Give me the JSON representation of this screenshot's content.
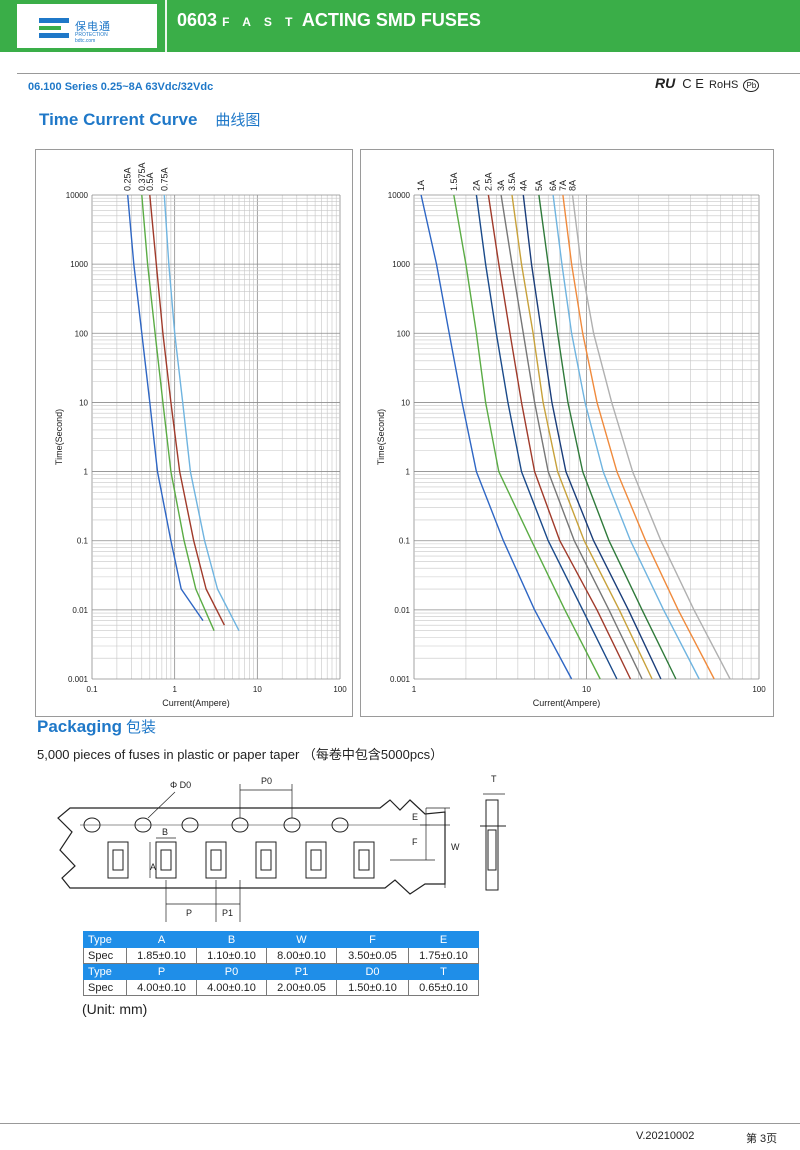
{
  "header": {
    "logo_cn": "保电通",
    "logo_en1": "PROTECTION",
    "logo_en2": "bdtc.com",
    "title_a": "0603",
    "title_b": "F A S T",
    "title_c": "ACTING SMD FUSES"
  },
  "series": "06.100 Series 0.25~8A 63Vdc/32Vdc",
  "certs": {
    "ul": "RU",
    "ce": "C E",
    "rohs": "RoHS",
    "pb": "Pb"
  },
  "curve_section": {
    "title": "Time Current Curve",
    "title_cn": "曲线图"
  },
  "chart_data": [
    {
      "type": "line",
      "xlabel": "Current(Ampere)",
      "ylabel": "Time(Second)",
      "xscale": "log",
      "yscale": "log",
      "xlim": [
        0.1,
        100
      ],
      "ylim": [
        0.001,
        10000
      ],
      "xticks": [
        "0.1",
        "1",
        "10",
        "100"
      ],
      "yticks": [
        "0.001",
        "0.01",
        "0.1",
        "1",
        "10",
        "100",
        "1000",
        "10000"
      ],
      "grid": true,
      "series": [
        {
          "name": "0.25A",
          "color": "#2e66c4",
          "points": [
            [
              0.27,
              10000
            ],
            [
              0.32,
              1000
            ],
            [
              0.4,
              100
            ],
            [
              0.5,
              10
            ],
            [
              0.62,
              1
            ],
            [
              0.9,
              0.1
            ],
            [
              1.2,
              0.02
            ],
            [
              2.2,
              0.007
            ]
          ]
        },
        {
          "name": "0.375A",
          "color": "#5aac44",
          "points": [
            [
              0.4,
              10000
            ],
            [
              0.47,
              1000
            ],
            [
              0.58,
              100
            ],
            [
              0.72,
              10
            ],
            [
              0.9,
              1
            ],
            [
              1.3,
              0.1
            ],
            [
              1.8,
              0.02
            ],
            [
              3.0,
              0.005
            ]
          ]
        },
        {
          "name": "0.5A",
          "color": "#a03a2a",
          "points": [
            [
              0.5,
              10000
            ],
            [
              0.6,
              1000
            ],
            [
              0.72,
              100
            ],
            [
              0.9,
              10
            ],
            [
              1.15,
              1
            ],
            [
              1.7,
              0.1
            ],
            [
              2.4,
              0.02
            ],
            [
              4.0,
              0.006
            ]
          ]
        },
        {
          "name": "0.75A",
          "color": "#6fb4e0",
          "points": [
            [
              0.75,
              10000
            ],
            [
              0.85,
              1000
            ],
            [
              1.0,
              100
            ],
            [
              1.25,
              10
            ],
            [
              1.55,
              1
            ],
            [
              2.3,
              0.1
            ],
            [
              3.3,
              0.02
            ],
            [
              6.0,
              0.005
            ]
          ]
        }
      ]
    },
    {
      "type": "line",
      "xlabel": "Current(Ampere)",
      "ylabel": "Time(Second)",
      "xscale": "log",
      "yscale": "log",
      "xlim": [
        1,
        100
      ],
      "ylim": [
        0.001,
        10000
      ],
      "xticks": [
        "1",
        "10",
        "100"
      ],
      "yticks": [
        "0.001",
        "0.01",
        "0.1",
        "1",
        "10",
        "100",
        "1000",
        "10000"
      ],
      "grid": true,
      "series": [
        {
          "name": "1A",
          "color": "#2e66c4",
          "points": [
            [
              1.1,
              10000
            ],
            [
              1.35,
              1000
            ],
            [
              1.6,
              100
            ],
            [
              1.9,
              10
            ],
            [
              2.3,
              1
            ],
            [
              3.3,
              0.1
            ],
            [
              5.0,
              0.01
            ],
            [
              8.2,
              0.001
            ]
          ]
        },
        {
          "name": "1.5A",
          "color": "#5aac44",
          "points": [
            [
              1.7,
              10000
            ],
            [
              2.0,
              1000
            ],
            [
              2.3,
              100
            ],
            [
              2.6,
              10
            ],
            [
              3.1,
              1
            ],
            [
              4.8,
              0.1
            ],
            [
              7.5,
              0.01
            ],
            [
              12.0,
              0.001
            ]
          ]
        },
        {
          "name": "2A",
          "color": "#1a4a8a",
          "points": [
            [
              2.3,
              10000
            ],
            [
              2.6,
              1000
            ],
            [
              3.0,
              100
            ],
            [
              3.5,
              10
            ],
            [
              4.2,
              1
            ],
            [
              6.0,
              0.1
            ],
            [
              9.5,
              0.01
            ],
            [
              15.0,
              0.001
            ]
          ]
        },
        {
          "name": "2.5A",
          "color": "#a03a2a",
          "points": [
            [
              2.7,
              10000
            ],
            [
              3.1,
              1000
            ],
            [
              3.6,
              100
            ],
            [
              4.2,
              10
            ],
            [
              5.0,
              1
            ],
            [
              7.0,
              0.1
            ],
            [
              11.5,
              0.01
            ],
            [
              18.0,
              0.001
            ]
          ]
        },
        {
          "name": "3A",
          "color": "#777777",
          "points": [
            [
              3.2,
              10000
            ],
            [
              3.7,
              1000
            ],
            [
              4.3,
              100
            ],
            [
              5.0,
              10
            ],
            [
              6.0,
              1
            ],
            [
              8.5,
              0.1
            ],
            [
              13.5,
              0.01
            ],
            [
              21.0,
              0.001
            ]
          ]
        },
        {
          "name": "3.5A",
          "color": "#c7a13a",
          "points": [
            [
              3.7,
              10000
            ],
            [
              4.2,
              1000
            ],
            [
              4.9,
              100
            ],
            [
              5.6,
              10
            ],
            [
              6.8,
              1
            ],
            [
              9.7,
              0.1
            ],
            [
              15.5,
              0.01
            ],
            [
              24.0,
              0.001
            ]
          ]
        },
        {
          "name": "4A",
          "color": "#1a3d7a",
          "points": [
            [
              4.3,
              10000
            ],
            [
              4.8,
              1000
            ],
            [
              5.5,
              100
            ],
            [
              6.3,
              10
            ],
            [
              7.6,
              1
            ],
            [
              11.0,
              0.1
            ],
            [
              17.5,
              0.01
            ],
            [
              27.0,
              0.001
            ]
          ]
        },
        {
          "name": "5A",
          "color": "#2f7a3a",
          "points": [
            [
              5.3,
              10000
            ],
            [
              6.0,
              1000
            ],
            [
              6.8,
              100
            ],
            [
              7.8,
              10
            ],
            [
              9.5,
              1
            ],
            [
              13.5,
              0.1
            ],
            [
              21.0,
              0.01
            ],
            [
              33.0,
              0.001
            ]
          ]
        },
        {
          "name": "6A",
          "color": "#6fb4e0",
          "points": [
            [
              6.4,
              10000
            ],
            [
              7.2,
              1000
            ],
            [
              8.2,
              100
            ],
            [
              9.8,
              10
            ],
            [
              12.5,
              1
            ],
            [
              18.0,
              0.1
            ],
            [
              28.0,
              0.01
            ],
            [
              45.0,
              0.001
            ]
          ]
        },
        {
          "name": "7A",
          "color": "#f08a3c",
          "points": [
            [
              7.3,
              10000
            ],
            [
              8.2,
              1000
            ],
            [
              9.5,
              100
            ],
            [
              11.5,
              10
            ],
            [
              15.0,
              1
            ],
            [
              22.0,
              0.1
            ],
            [
              34.0,
              0.01
            ],
            [
              55.0,
              0.001
            ]
          ]
        },
        {
          "name": "8A",
          "color": "#b0b0b0",
          "points": [
            [
              8.3,
              10000
            ],
            [
              9.3,
              1000
            ],
            [
              11.0,
              100
            ],
            [
              14.0,
              10
            ],
            [
              18.5,
              1
            ],
            [
              27.0,
              0.1
            ],
            [
              42.0,
              0.01
            ],
            [
              68.0,
              0.001
            ]
          ]
        }
      ]
    }
  ],
  "packaging": {
    "title": "Packaging",
    "title_cn": "包装",
    "note": "5,000 pieces of fuses in  plastic or paper taper  （每卷中包含5000pcs）",
    "dim_labels": {
      "D0": "Φ D0",
      "P0": "P0",
      "B": "B",
      "A": "A",
      "P": "P",
      "P1": "P1",
      "E": "E",
      "F": "F",
      "W": "W",
      "T": "T"
    },
    "table": [
      {
        "kind": "hdr",
        "cells": [
          "Type",
          "A",
          "B",
          "W",
          "F",
          "E"
        ]
      },
      {
        "kind": "val",
        "cells": [
          "Spec",
          "1.85±0.10",
          "1.10±0.10",
          "8.00±0.10",
          "3.50±0.05",
          "1.75±0.10"
        ]
      },
      {
        "kind": "hdr",
        "cells": [
          "Type",
          "P",
          "P0",
          "P1",
          "D0",
          "T"
        ]
      },
      {
        "kind": "val",
        "cells": [
          "Spec",
          "4.00±0.10",
          "4.00±0.10",
          "2.00±0.05",
          "1.50±0.10",
          "0.65±0.10"
        ]
      }
    ],
    "unit": "(Unit: mm)"
  },
  "footer": {
    "version": "V.20210002",
    "page": "第 3页"
  }
}
